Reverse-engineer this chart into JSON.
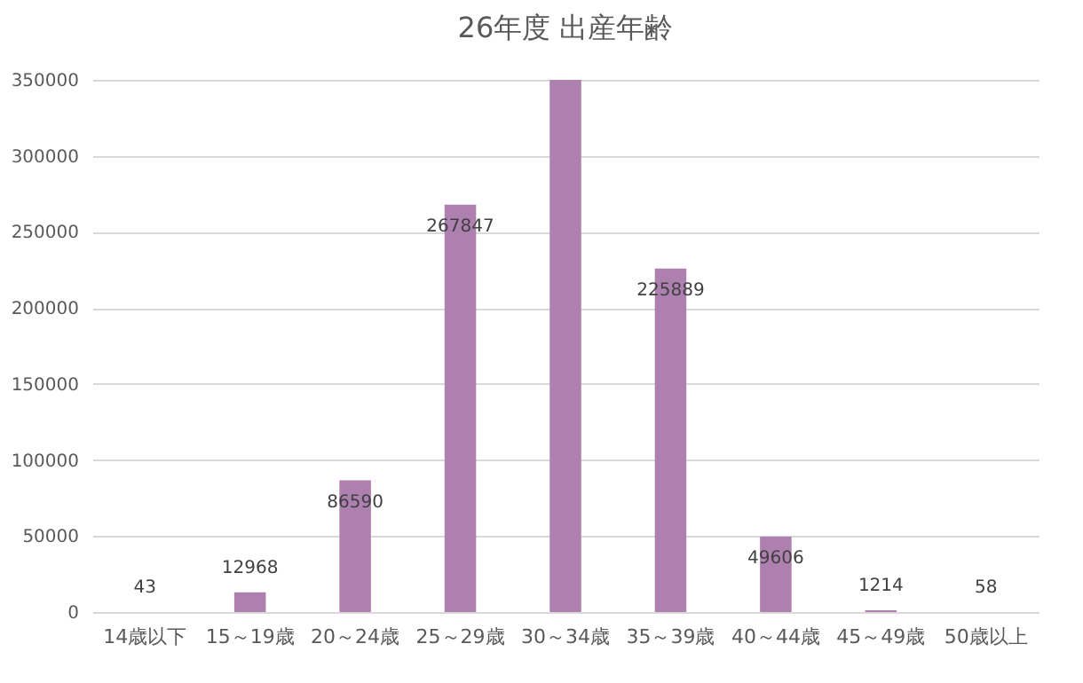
{
  "chart_data": {
    "type": "bar",
    "title": "26年度 出産年齢",
    "categories": [
      "14歳以下",
      "15～19歳",
      "20～24歳",
      "25～29歳",
      "30～34歳",
      "35～39歳",
      "40～44歳",
      "45～49歳",
      "50歳以上"
    ],
    "values": [
      43,
      12968,
      86590,
      267847,
      350000,
      225889,
      49606,
      1214,
      58
    ],
    "value_labels": [
      "43",
      "12968",
      "86590",
      "267847",
      null,
      "225889",
      "49606",
      "1214",
      "58"
    ],
    "color": "#ae80b0",
    "ylim": [
      0,
      350000
    ],
    "yticks": [
      0,
      50000,
      100000,
      150000,
      200000,
      250000,
      300000,
      350000
    ],
    "grid": "y"
  }
}
